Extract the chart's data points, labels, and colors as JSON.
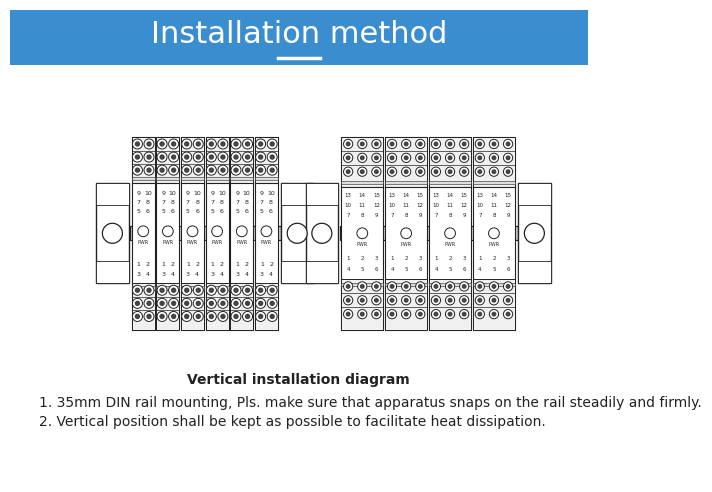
{
  "title": "Installation method",
  "title_bg_color": "#3a8ecf",
  "title_text_color": "#ffffff",
  "title_underline_color": "#ffffff",
  "body_bg_color": "#ffffff",
  "caption": "Vertical installation diagram",
  "bullet1": "1. 35mm DIN rail mounting, Pls. make sure that apparatus snaps on the rail steadily and firmly.",
  "bullet2": "2. Vertical position shall be kept as possible to facilitate heat dissipation.",
  "text_color": "#222222",
  "module_border_color": "#222222"
}
